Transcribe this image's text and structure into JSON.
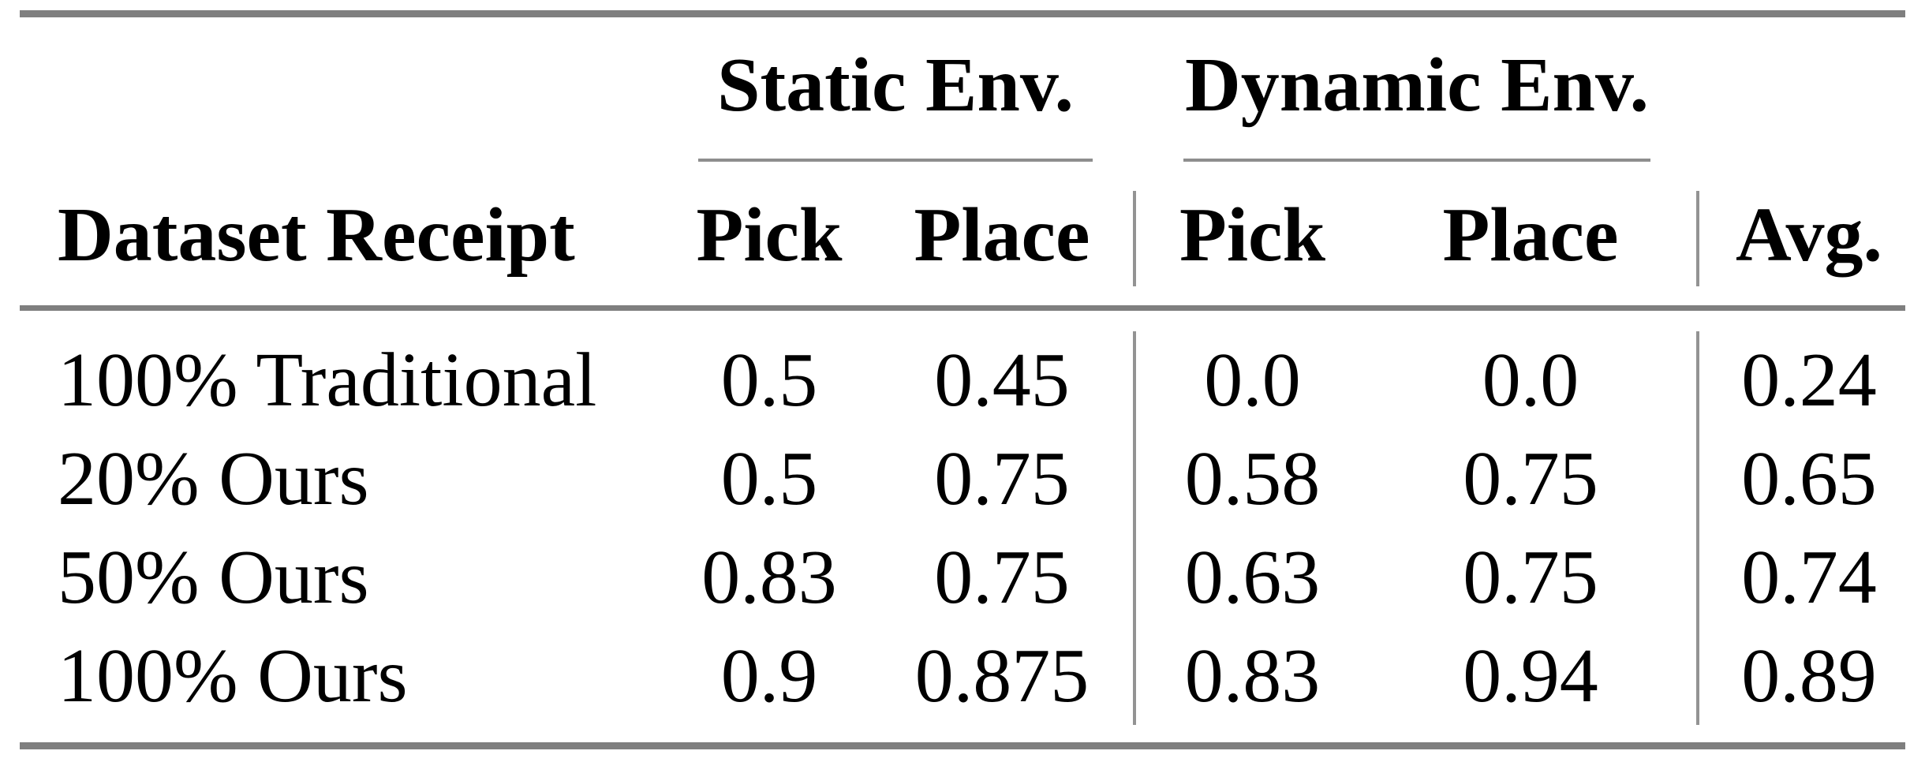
{
  "table": {
    "groups": {
      "static": "Static Env.",
      "dynamic": "Dynamic Env."
    },
    "col_headers": {
      "dataset": "Dataset Receipt",
      "static_pick": "Pick",
      "static_place": "Place",
      "dynamic_pick": "Pick",
      "dynamic_place": "Place",
      "avg": "Avg."
    },
    "rows": [
      {
        "label": "100% Traditional",
        "static_pick": "0.5",
        "static_place": "0.45",
        "dynamic_pick": "0.0",
        "dynamic_place": "0.0",
        "avg": "0.24"
      },
      {
        "label": "20% Ours",
        "static_pick": "0.5",
        "static_place": "0.75",
        "dynamic_pick": "0.58",
        "dynamic_place": "0.75",
        "avg": "0.65"
      },
      {
        "label": "50% Ours",
        "static_pick": "0.83",
        "static_place": "0.75",
        "dynamic_pick": "0.63",
        "dynamic_place": "0.75",
        "avg": "0.74"
      },
      {
        "label": "100% Ours",
        "static_pick": "0.9",
        "static_place": "0.875",
        "dynamic_pick": "0.83",
        "dynamic_place": "0.94",
        "avg": "0.89"
      }
    ]
  },
  "colors": {
    "thick_rule": "#7f7f7f",
    "thin_rule": "#8e8e8e",
    "vertical_rule": "#939393",
    "text": "#000000",
    "background": "#ffffff"
  }
}
